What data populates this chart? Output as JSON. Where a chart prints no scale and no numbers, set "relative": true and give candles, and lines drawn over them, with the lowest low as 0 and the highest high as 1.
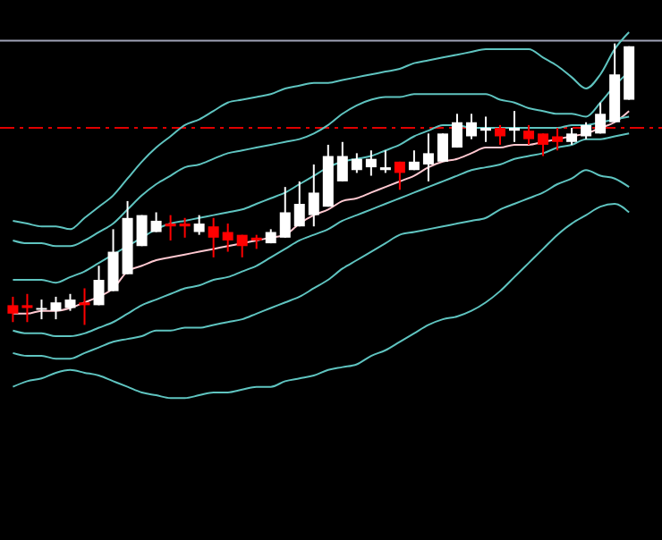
{
  "chart_data": {
    "type": "candlestick",
    "relative": true,
    "categories": [
      null,
      null,
      null,
      null,
      null,
      null,
      null,
      null,
      null,
      null,
      null,
      null,
      null,
      null,
      null,
      null,
      null,
      null,
      null,
      null,
      null,
      null,
      null,
      null,
      null,
      null,
      null,
      null,
      null,
      null,
      null,
      null,
      null,
      null,
      null,
      null,
      null,
      null,
      null,
      null,
      null,
      null,
      null,
      null
    ],
    "ohlc": [
      [
        0.07,
        0.1,
        0.01,
        0.04
      ],
      [
        0.07,
        0.11,
        0.01,
        0.06
      ],
      [
        0.06,
        0.09,
        0.02,
        0.06
      ],
      [
        0.05,
        0.1,
        0.02,
        0.08
      ],
      [
        0.06,
        0.11,
        0.05,
        0.09
      ],
      [
        0.08,
        0.13,
        0,
        0.07
      ],
      [
        0.07,
        0.21,
        0.07,
        0.16
      ],
      [
        0.12,
        0.34,
        0.12,
        0.26
      ],
      [
        0.18,
        0.44,
        0.18,
        0.38
      ],
      [
        0.28,
        0.39,
        0.28,
        0.39
      ],
      [
        0.33,
        0.4,
        0.33,
        0.37
      ],
      [
        0.36,
        0.39,
        0.3,
        0.35
      ],
      [
        0.36,
        0.38,
        0.31,
        0.35
      ],
      [
        0.33,
        0.39,
        0.32,
        0.36
      ],
      [
        0.35,
        0.38,
        0.24,
        0.31
      ],
      [
        0.33,
        0.36,
        0.26,
        0.3
      ],
      [
        0.32,
        0.32,
        0.24,
        0.28
      ],
      [
        0.31,
        0.32,
        0.27,
        0.3
      ],
      [
        0.29,
        0.34,
        0.29,
        0.33
      ],
      [
        0.31,
        0.49,
        0.31,
        0.4
      ],
      [
        0.35,
        0.51,
        0.35,
        0.43
      ],
      [
        0.39,
        0.57,
        0.35,
        0.47
      ],
      [
        0.42,
        0.64,
        0.42,
        0.6
      ],
      [
        0.51,
        0.65,
        0.51,
        0.6
      ],
      [
        0.55,
        0.61,
        0.54,
        0.59
      ],
      [
        0.56,
        0.62,
        0.53,
        0.59
      ],
      [
        0.55,
        0.62,
        0.54,
        0.56
      ],
      [
        0.58,
        0.58,
        0.48,
        0.54
      ],
      [
        0.55,
        0.62,
        0.55,
        0.58
      ],
      [
        0.57,
        0.68,
        0.51,
        0.61
      ],
      [
        0.58,
        0.68,
        0.58,
        0.68
      ],
      [
        0.63,
        0.75,
        0.63,
        0.72
      ],
      [
        0.67,
        0.75,
        0.66,
        0.72
      ],
      [
        0.69,
        0.74,
        0.65,
        0.7
      ],
      [
        0.7,
        0.71,
        0.64,
        0.67
      ],
      [
        0.69,
        0.76,
        0.65,
        0.7
      ],
      [
        0.69,
        0.71,
        0.64,
        0.66
      ],
      [
        0.68,
        0.68,
        0.6,
        0.64
      ],
      [
        0.67,
        0.7,
        0.62,
        0.65
      ],
      [
        0.65,
        0.7,
        0.64,
        0.68
      ],
      [
        0.67,
        0.72,
        0.66,
        0.71
      ],
      [
        0.68,
        0.79,
        0.68,
        0.75
      ],
      [
        0.72,
        1,
        0.72,
        0.89
      ],
      [
        0.8,
        0.99,
        0.8,
        0.99
      ]
    ],
    "colors": [
      "#ff0000",
      "#ff0000",
      "#ffffff",
      "#ffffff",
      "#ffffff",
      "#ff0000",
      "#ffffff",
      "#ffffff",
      "#ffffff",
      "#ffffff",
      "#ffffff",
      "#ff0000",
      "#ff0000",
      "#ffffff",
      "#ff0000",
      "#ff0000",
      "#ff0000",
      "#ff0000",
      "#ffffff",
      "#ffffff",
      "#ffffff",
      "#ffffff",
      "#ffffff",
      "#ffffff",
      "#ffffff",
      "#ffffff",
      "#ffffff",
      "#ff0000",
      "#ffffff",
      "#ffffff",
      "#ffffff",
      "#ffffff",
      "#ffffff",
      "#ffffff",
      "#ff0000",
      "#ffffff",
      "#ff0000",
      "#ff0000",
      "#ff0000",
      "#ffffff",
      "#ffffff",
      "#ffffff",
      "#ffffff",
      "#ffffff"
    ],
    "series": [
      {
        "type": "line",
        "color": "#ffc8d0",
        "values": [
          0.04,
          0.04,
          0.05,
          0.05,
          0.06,
          0.08,
          0.1,
          0.13,
          0.19,
          0.21,
          0.23,
          0.24,
          0.25,
          0.26,
          0.27,
          0.28,
          0.29,
          0.3,
          0.31,
          0.32,
          0.36,
          0.39,
          0.41,
          0.44,
          0.45,
          0.47,
          0.49,
          0.51,
          0.53,
          0.56,
          0.58,
          0.59,
          0.61,
          0.63,
          0.63,
          0.64,
          0.64,
          0.65,
          0.66,
          0.67,
          0.68,
          0.7,
          0.72,
          0.76
        ]
      },
      {
        "type": "line",
        "color": "#5fc4c0",
        "values": [
          0.37,
          0.36,
          0.35,
          0.35,
          0.34,
          0.38,
          0.42,
          0.46,
          0.52,
          0.58,
          0.63,
          0.67,
          0.71,
          0.73,
          0.76,
          0.79,
          0.8,
          0.81,
          0.82,
          0.84,
          0.85,
          0.86,
          0.86,
          0.87,
          0.88,
          0.89,
          0.9,
          0.91,
          0.93,
          0.94,
          0.95,
          0.96,
          0.97,
          0.98,
          0.98,
          0.98,
          0.98,
          0.95,
          0.92,
          0.88,
          0.84,
          0.89,
          0.98,
          1.04
        ]
      },
      {
        "type": "line",
        "color": "#5fc4c0",
        "values": [
          0.3,
          0.29,
          0.29,
          0.28,
          0.28,
          0.3,
          0.33,
          0.36,
          0.41,
          0.46,
          0.5,
          0.53,
          0.56,
          0.57,
          0.59,
          0.61,
          0.62,
          0.63,
          0.64,
          0.65,
          0.66,
          0.68,
          0.71,
          0.75,
          0.78,
          0.8,
          0.81,
          0.81,
          0.82,
          0.82,
          0.82,
          0.82,
          0.82,
          0.82,
          0.8,
          0.79,
          0.77,
          0.76,
          0.75,
          0.75,
          0.74,
          0.79,
          0.85,
          0.9
        ]
      },
      {
        "type": "line",
        "color": "#5fc4c0",
        "values": [
          0.16,
          0.16,
          0.16,
          0.15,
          0.17,
          0.19,
          0.22,
          0.25,
          0.28,
          0.31,
          0.34,
          0.36,
          0.37,
          0.38,
          0.39,
          0.4,
          0.41,
          0.43,
          0.45,
          0.47,
          0.5,
          0.53,
          0.56,
          0.58,
          0.59,
          0.6,
          0.62,
          0.64,
          0.67,
          0.69,
          0.71,
          0.71,
          0.7,
          0.7,
          0.7,
          0.7,
          0.7,
          0.7,
          0.7,
          0.71,
          0.71,
          0.72,
          0.73,
          0.74
        ]
      },
      {
        "type": "line",
        "color": "#5fc4c0",
        "values": [
          -0.02,
          -0.03,
          -0.03,
          -0.04,
          -0.04,
          -0.03,
          -0.01,
          0.01,
          0.04,
          0.07,
          0.09,
          0.11,
          0.13,
          0.14,
          0.16,
          0.17,
          0.19,
          0.21,
          0.24,
          0.27,
          0.3,
          0.32,
          0.34,
          0.37,
          0.39,
          0.41,
          0.43,
          0.45,
          0.47,
          0.49,
          0.51,
          0.53,
          0.55,
          0.56,
          0.57,
          0.59,
          0.6,
          0.61,
          0.63,
          0.64,
          0.66,
          0.66,
          0.67,
          0.68
        ]
      },
      {
        "type": "line",
        "color": "#5fc4c0",
        "values": [
          -0.1,
          -0.11,
          -0.11,
          -0.12,
          -0.12,
          -0.1,
          -0.08,
          -0.06,
          -0.05,
          -0.04,
          -0.02,
          -0.02,
          -0.01,
          -0.01,
          0,
          0.01,
          0.02,
          0.04,
          0.06,
          0.08,
          0.1,
          0.13,
          0.16,
          0.2,
          0.23,
          0.26,
          0.29,
          0.32,
          0.33,
          0.34,
          0.35,
          0.36,
          0.37,
          0.38,
          0.41,
          0.43,
          0.45,
          0.47,
          0.5,
          0.52,
          0.55,
          0.53,
          0.52,
          0.49
        ]
      },
      {
        "type": "line",
        "color": "#5fc4c0",
        "values": [
          -0.22,
          -0.2,
          -0.19,
          -0.17,
          -0.16,
          -0.17,
          -0.18,
          -0.2,
          -0.22,
          -0.24,
          -0.25,
          -0.26,
          -0.26,
          -0.25,
          -0.24,
          -0.24,
          -0.23,
          -0.22,
          -0.22,
          -0.2,
          -0.19,
          -0.18,
          -0.16,
          -0.15,
          -0.14,
          -0.11,
          -0.09,
          -0.06,
          -0.03,
          0,
          0.02,
          0.03,
          0.05,
          0.08,
          0.12,
          0.17,
          0.22,
          0.27,
          0.32,
          0.36,
          0.39,
          0.42,
          0.43,
          0.4
        ]
      }
    ],
    "ref_lines": [
      {
        "axis": "y",
        "value": 1.01,
        "color": "#a0a4b8",
        "line_style": "solid"
      },
      {
        "axis": "y",
        "value": 0.7,
        "color": "#e00000",
        "line_style": "dashed"
      }
    ],
    "line_style": "solid"
  }
}
